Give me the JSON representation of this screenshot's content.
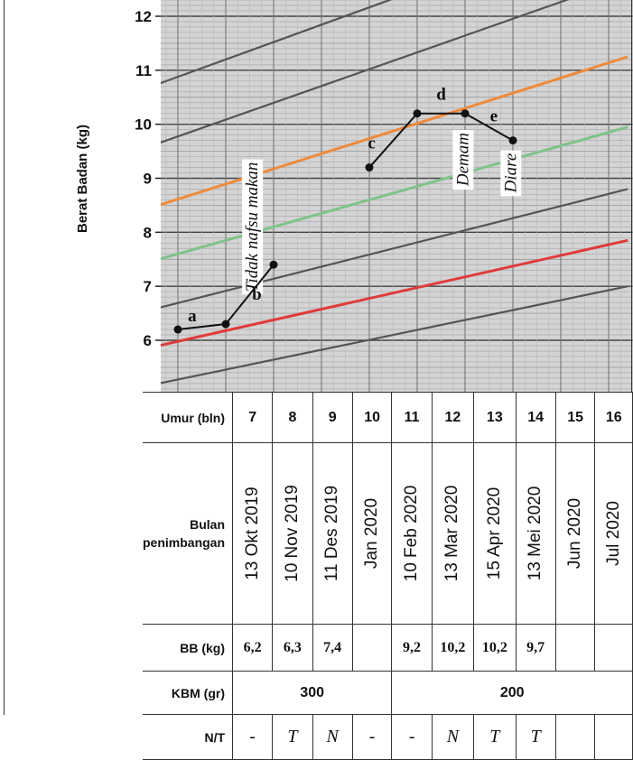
{
  "chart_data": {
    "type": "line",
    "ylabel": "Berat Badan (kg)",
    "y_ticks": [
      6,
      7,
      8,
      9,
      10,
      11,
      12
    ],
    "ylim": [
      5.0,
      12.1
    ],
    "xlim": [
      6.6,
      16.4
    ],
    "grid": true,
    "reference_curves": [
      {
        "color": "#555555",
        "points": [
          [
            6.6,
            5.2
          ],
          [
            16.4,
            7.0
          ]
        ]
      },
      {
        "color": "#e03a3a",
        "points": [
          [
            6.6,
            5.9
          ],
          [
            16.4,
            7.85
          ]
        ]
      },
      {
        "color": "#555555",
        "points": [
          [
            6.6,
            6.6
          ],
          [
            16.4,
            8.8
          ]
        ]
      },
      {
        "color": "#7fc38a",
        "points": [
          [
            6.6,
            7.5
          ],
          [
            16.4,
            9.95
          ]
        ]
      },
      {
        "color": "#ef8a3a",
        "points": [
          [
            6.6,
            8.5
          ],
          [
            16.4,
            11.25
          ]
        ]
      },
      {
        "color": "#555555",
        "points": [
          [
            6.6,
            9.65
          ],
          [
            16.4,
            12.7
          ]
        ]
      },
      {
        "color": "#555555",
        "points": [
          [
            6.6,
            10.75
          ],
          [
            16.4,
            13.9
          ]
        ]
      }
    ],
    "series": [
      {
        "points": [
          [
            7,
            6.2
          ],
          [
            8,
            6.3
          ],
          [
            9,
            7.4
          ]
        ]
      },
      {
        "points": [
          [
            11,
            9.2
          ],
          [
            12,
            10.2
          ],
          [
            13,
            10.2
          ],
          [
            14,
            9.7
          ]
        ]
      }
    ],
    "point_labels": [
      {
        "text": "a",
        "x": 7.3,
        "y": 6.35
      },
      {
        "text": "b",
        "x": 8.65,
        "y": 6.75
      },
      {
        "text": "c",
        "x": 11.05,
        "y": 9.55
      },
      {
        "text": "d",
        "x": 12.5,
        "y": 10.45
      },
      {
        "text": "e",
        "x": 13.6,
        "y": 10.05
      }
    ],
    "annotations": [
      {
        "text": "Tidak nafsu makan",
        "x": 8.55,
        "y": 8.1
      },
      {
        "text": "Demam",
        "x": 12.95,
        "y": 9.35
      },
      {
        "text": "Diare",
        "x": 13.95,
        "y": 9.1
      }
    ],
    "line_color": "#111111"
  },
  "table": {
    "rows": {
      "umur": "Umur (bln)",
      "bulan": [
        "Bulan",
        "penimbangan"
      ],
      "bb": "BB (kg)",
      "kbm": "KBM (gr)",
      "nt": "N/T"
    },
    "ages": [
      "7",
      "8",
      "9",
      "10",
      "11",
      "12",
      "13",
      "14",
      "15",
      "16"
    ],
    "dates": [
      "13 Okt 2019",
      "10 Nov 2019",
      "11 Des 2019",
      "Jan 2020",
      "10 Feb 2020",
      "13 Mar 2020",
      "15 Apr 2020",
      "13 Mei 2020",
      "Jun 2020",
      "Jul 2020"
    ],
    "weights": [
      "6,2",
      "6,3",
      "7,4",
      "",
      "9,2",
      "10,2",
      "10,2",
      "9,7",
      "",
      ""
    ],
    "kbm": [
      "300",
      "200"
    ],
    "nt": [
      "-",
      "T",
      "N",
      "-",
      "-",
      "N",
      "T",
      "T",
      "",
      ""
    ]
  }
}
